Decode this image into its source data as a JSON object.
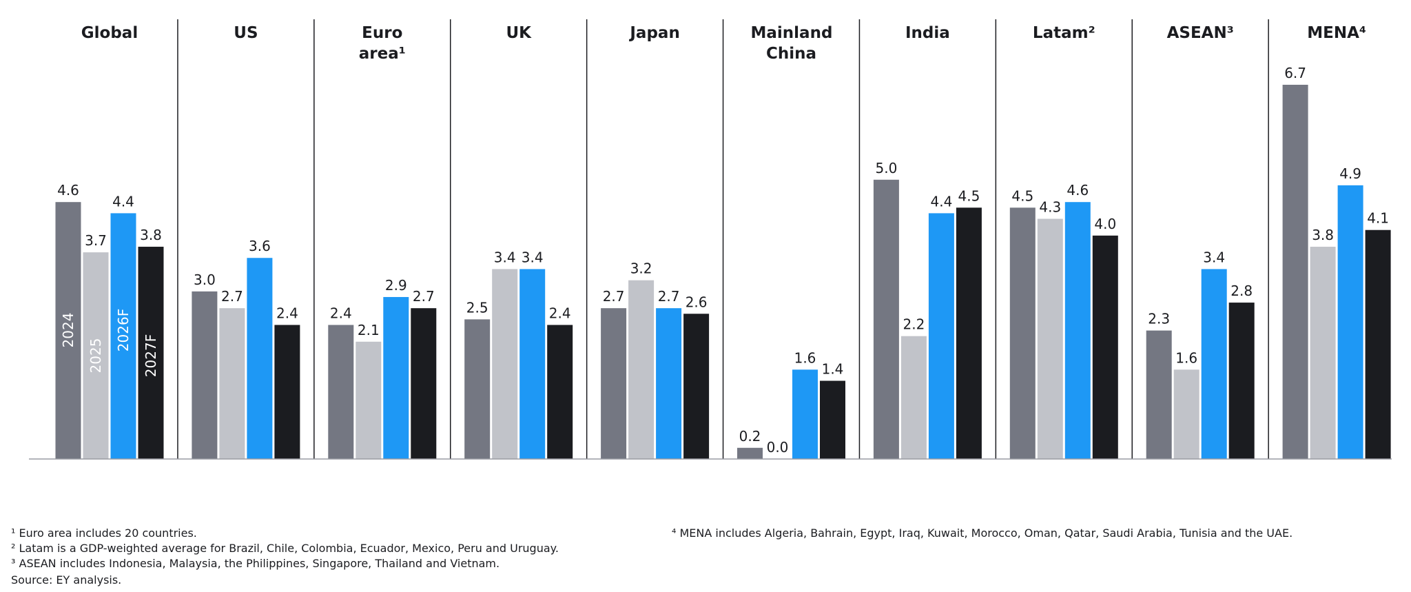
{
  "chart_data": {
    "type": "bar",
    "categories": [
      "Global",
      "US",
      "Euro area¹",
      "UK",
      "Japan",
      "Mainland China",
      "India",
      "Latam²",
      "ASEAN³",
      "MENA⁴"
    ],
    "series": [
      {
        "name": "2024",
        "color": "#747782",
        "values": [
          4.6,
          3.0,
          2.4,
          2.5,
          2.7,
          0.2,
          5.0,
          4.5,
          2.3,
          6.7
        ],
        "value_labels": [
          "4.6",
          "3.0",
          "2.4",
          "2.5",
          "2.7",
          "0.2",
          "5.0",
          "4.5",
          "2.3",
          "6.7"
        ]
      },
      {
        "name": "2025",
        "color": "#c1c3c9",
        "values": [
          3.7,
          2.7,
          2.1,
          3.4,
          3.2,
          0.0,
          2.2,
          4.3,
          1.6,
          3.8
        ],
        "value_labels": [
          "3.7",
          "2.7",
          "2.1",
          "3.4",
          "3.2",
          "0.0",
          "2.2",
          "4.3",
          "1.6",
          "3.8"
        ]
      },
      {
        "name": "2026F",
        "color": "#1e98f5",
        "values": [
          4.4,
          3.6,
          2.9,
          3.4,
          2.7,
          1.6,
          4.4,
          4.6,
          3.4,
          4.9
        ],
        "value_labels": [
          "4.4",
          "3.6",
          "2.9",
          "3.4",
          "2.7",
          "1.6",
          "4.4",
          "4.6",
          "3.4",
          "4.9"
        ]
      },
      {
        "name": "2027F",
        "color": "#1b1c20",
        "values": [
          3.8,
          2.4,
          2.7,
          2.4,
          2.6,
          1.4,
          4.5,
          4.0,
          2.8,
          4.1
        ],
        "value_labels": [
          "3.8",
          "2.4",
          "2.7",
          "2.4",
          "2.6",
          "1.4",
          "4.5",
          "4.0",
          "2.8",
          "4.1"
        ]
      }
    ],
    "notes": [
      "¹ Euro area includes 20 countries.",
      "² Latam is a GDP-weighted average for Brazil, Chile, Colombia, Ecuador, Mexico, Peru and Uruguay.",
      "³ ASEAN includes Indonesia, Malaysia, the Philippines, Singapore, Thailand and Vietnam.",
      "Source: EY analysis.",
      "⁴ MENA includes Algeria, Bahrain, Egypt, Iraq, Kuwait, Morocco, Oman, Qatar, Saudi Arabia, Tunisia and the UAE."
    ]
  }
}
